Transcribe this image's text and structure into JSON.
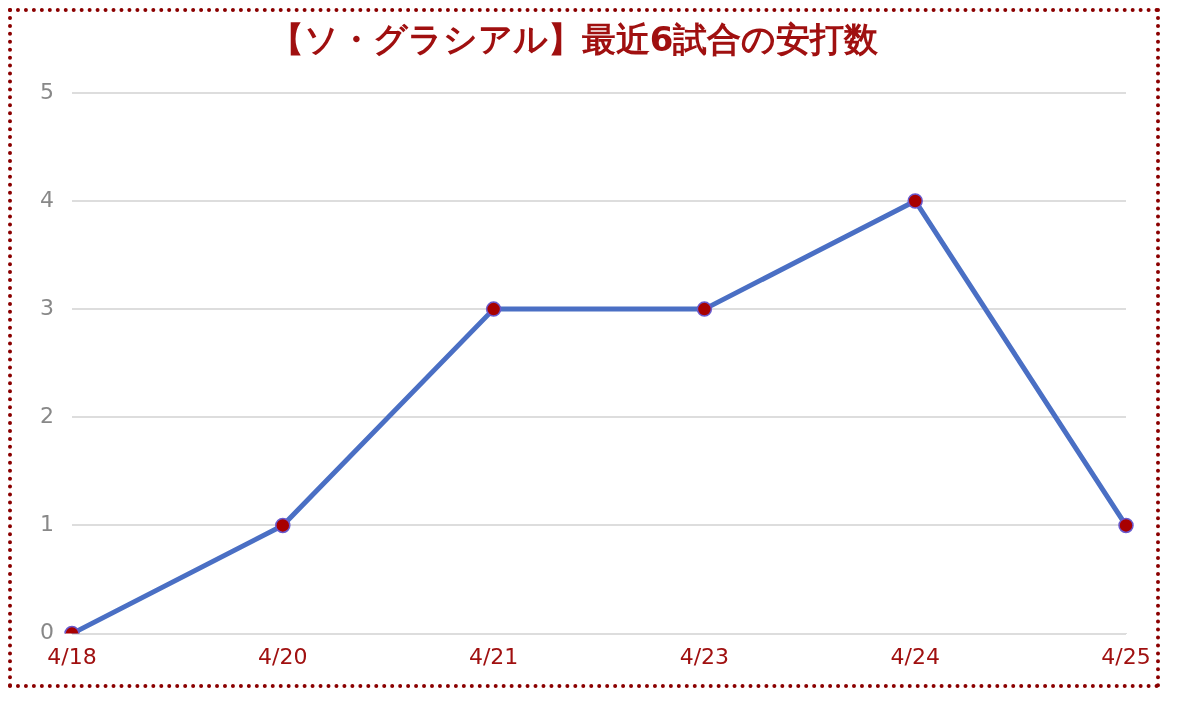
{
  "chart_data": {
    "type": "line",
    "title": "【ソ・グラシアル】最近6試合の安打数",
    "categories": [
      "4/18",
      "4/20",
      "4/21",
      "4/23",
      "4/24",
      "4/25"
    ],
    "series": [
      {
        "color": "#4a6fc4",
        "values": [
          0,
          1,
          3,
          3,
          4,
          1
        ]
      }
    ],
    "marker": "circle",
    "line_style": "solid",
    "ylim": [
      0,
      5
    ],
    "yticks": [
      0,
      1,
      2,
      3,
      4,
      5
    ],
    "grid": "y",
    "legend": false
  }
}
